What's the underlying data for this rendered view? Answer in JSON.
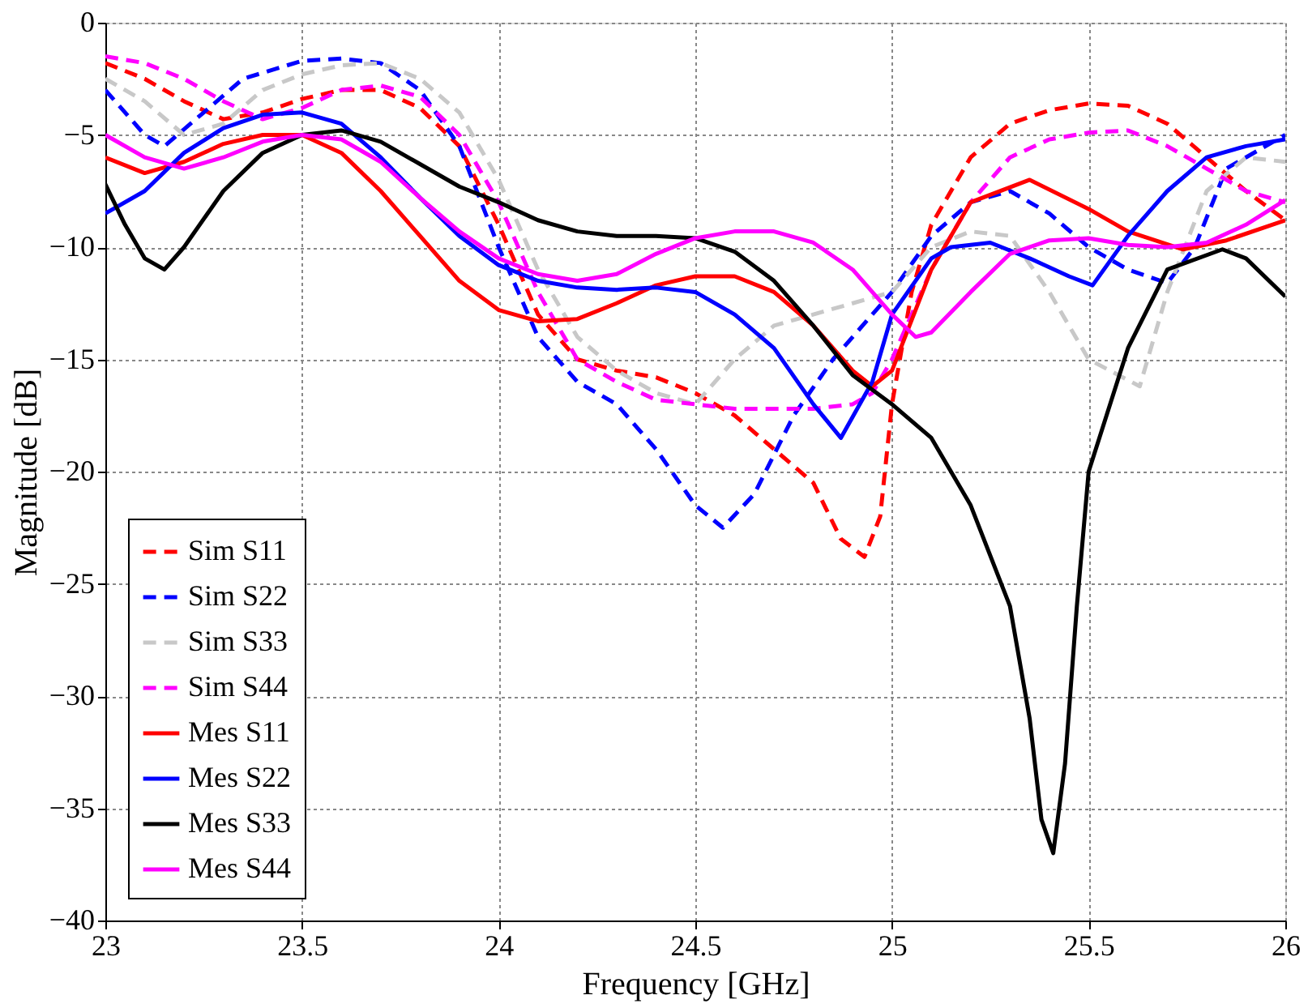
{
  "chart_data": {
    "type": "line",
    "xlabel": "Frequency [GHz]",
    "ylabel": "Magnitude [dB]",
    "xlim": [
      23,
      26
    ],
    "ylim": [
      -40,
      0
    ],
    "xticks": [
      23,
      23.5,
      24,
      24.5,
      25,
      25.5,
      26
    ],
    "yticks": [
      -40,
      -35,
      -30,
      -25,
      -20,
      -15,
      -10,
      -5,
      0
    ],
    "grid": true,
    "legend": "bottom left",
    "marker": "none",
    "series": [
      {
        "name": "Sim S11",
        "color": "#ff0000",
        "line_style": "dashed",
        "x": [
          23.0,
          23.1,
          23.2,
          23.3,
          23.4,
          23.5,
          23.6,
          23.7,
          23.8,
          23.9,
          24.0,
          24.1,
          24.2,
          24.3,
          24.4,
          24.5,
          24.6,
          24.7,
          24.8,
          24.87,
          24.93,
          24.97,
          25.0,
          25.05,
          25.1,
          25.2,
          25.3,
          25.4,
          25.5,
          25.6,
          25.7,
          25.8,
          25.9,
          26.0
        ],
        "values": [
          -1.8,
          -2.5,
          -3.5,
          -4.3,
          -4.0,
          -3.4,
          -3.0,
          -3.0,
          -3.8,
          -5.5,
          -9,
          -13,
          -15,
          -15.5,
          -15.8,
          -16.5,
          -17.5,
          -19,
          -20.5,
          -23,
          -23.8,
          -22,
          -17,
          -12,
          -9,
          -6,
          -4.5,
          -3.9,
          -3.6,
          -3.7,
          -4.5,
          -6,
          -7.5,
          -8.8
        ]
      },
      {
        "name": "Sim S22",
        "color": "#0000ff",
        "line_style": "dashed",
        "x": [
          23.0,
          23.1,
          23.15,
          23.25,
          23.35,
          23.5,
          23.6,
          23.7,
          23.8,
          23.9,
          24.0,
          24.1,
          24.2,
          24.3,
          24.4,
          24.5,
          24.57,
          24.65,
          24.75,
          24.85,
          25.0,
          25.1,
          25.2,
          25.3,
          25.4,
          25.5,
          25.6,
          25.7,
          25.77,
          25.85,
          26.0
        ],
        "values": [
          -3,
          -5,
          -5.5,
          -4,
          -2.5,
          -1.7,
          -1.6,
          -1.8,
          -3,
          -5.5,
          -10,
          -14,
          -16,
          -17,
          -19,
          -21.5,
          -22.5,
          -21,
          -17.5,
          -15,
          -12,
          -9.5,
          -8,
          -7.5,
          -8.5,
          -10,
          -11,
          -11.6,
          -10,
          -6.5,
          -5
        ]
      },
      {
        "name": "Sim S33",
        "color": "#c8c8c8",
        "line_style": "dashed",
        "x": [
          23.0,
          23.1,
          23.2,
          23.3,
          23.4,
          23.5,
          23.6,
          23.7,
          23.8,
          23.9,
          24.0,
          24.1,
          24.2,
          24.3,
          24.4,
          24.5,
          24.6,
          24.7,
          24.8,
          24.9,
          25.0,
          25.1,
          25.2,
          25.3,
          25.4,
          25.5,
          25.63,
          25.7,
          25.8,
          25.9,
          26.0
        ],
        "values": [
          -2.5,
          -3.5,
          -5,
          -4.5,
          -3,
          -2.3,
          -1.9,
          -1.8,
          -2.5,
          -4,
          -7,
          -11,
          -14,
          -15.5,
          -16.5,
          -17,
          -15,
          -13.5,
          -13,
          -12.5,
          -12,
          -10,
          -9.3,
          -9.5,
          -12,
          -15,
          -16.2,
          -12,
          -7.5,
          -6,
          -6.2
        ]
      },
      {
        "name": "Sim S44",
        "color": "#ff00ff",
        "line_style": "dashed",
        "x": [
          23.0,
          23.1,
          23.2,
          23.3,
          23.4,
          23.5,
          23.6,
          23.7,
          23.8,
          23.9,
          24.0,
          24.1,
          24.2,
          24.3,
          24.4,
          24.5,
          24.6,
          24.7,
          24.8,
          24.9,
          24.95,
          25.0,
          25.1,
          25.2,
          25.3,
          25.4,
          25.5,
          25.6,
          25.7,
          25.8,
          25.9,
          26.0
        ],
        "values": [
          -1.5,
          -1.8,
          -2.5,
          -3.5,
          -4.3,
          -3.8,
          -3,
          -2.8,
          -3.3,
          -5,
          -8,
          -12,
          -15,
          -16,
          -16.8,
          -17,
          -17.2,
          -17.2,
          -17.2,
          -17,
          -16.5,
          -15,
          -11,
          -8,
          -6,
          -5.2,
          -4.9,
          -4.8,
          -5.5,
          -6.5,
          -7.5,
          -8
        ]
      },
      {
        "name": "Mes S11",
        "color": "#ff0000",
        "line_style": "solid",
        "x": [
          23.0,
          23.1,
          23.2,
          23.3,
          23.4,
          23.5,
          23.6,
          23.7,
          23.8,
          23.9,
          24.0,
          24.1,
          24.2,
          24.3,
          24.4,
          24.5,
          24.6,
          24.7,
          24.8,
          24.9,
          24.95,
          25.0,
          25.1,
          25.2,
          25.35,
          25.5,
          25.6,
          25.74,
          25.85,
          26.0
        ],
        "values": [
          -6,
          -6.7,
          -6.2,
          -5.4,
          -5,
          -5,
          -5.8,
          -7.5,
          -9.5,
          -11.5,
          -12.8,
          -13.3,
          -13.2,
          -12.5,
          -11.7,
          -11.3,
          -11.3,
          -12,
          -13.5,
          -15.5,
          -16.2,
          -15.5,
          -11,
          -8,
          -7,
          -8.3,
          -9.3,
          -10.1,
          -9.7,
          -8.8
        ]
      },
      {
        "name": "Mes S22",
        "color": "#0000ff",
        "line_style": "solid",
        "x": [
          23.0,
          23.1,
          23.2,
          23.3,
          23.4,
          23.5,
          23.6,
          23.7,
          23.8,
          23.9,
          24.0,
          24.1,
          24.2,
          24.3,
          24.4,
          24.5,
          24.6,
          24.7,
          24.8,
          24.87,
          24.95,
          25.0,
          25.1,
          25.15,
          25.25,
          25.35,
          25.45,
          25.51,
          25.6,
          25.7,
          25.8,
          25.9,
          26.0
        ],
        "values": [
          -8.5,
          -7.5,
          -5.8,
          -4.7,
          -4.1,
          -4,
          -4.5,
          -6,
          -7.8,
          -9.5,
          -10.8,
          -11.5,
          -11.8,
          -11.9,
          -11.8,
          -12,
          -13,
          -14.5,
          -17,
          -18.5,
          -16,
          -13,
          -10.5,
          -10,
          -9.8,
          -10.5,
          -11.3,
          -11.7,
          -9.5,
          -7.5,
          -6,
          -5.5,
          -5.2
        ]
      },
      {
        "name": "Mes S33",
        "color": "#000000",
        "line_style": "solid",
        "x": [
          23.0,
          23.05,
          23.1,
          23.15,
          23.2,
          23.3,
          23.4,
          23.5,
          23.6,
          23.7,
          23.8,
          23.9,
          24.0,
          24.1,
          24.2,
          24.3,
          24.4,
          24.5,
          24.6,
          24.7,
          24.8,
          24.9,
          25.0,
          25.1,
          25.2,
          25.3,
          25.35,
          25.38,
          25.41,
          25.44,
          25.47,
          25.5,
          25.6,
          25.7,
          25.84,
          25.9,
          26.0
        ],
        "values": [
          -7.2,
          -9,
          -10.5,
          -11,
          -10,
          -7.5,
          -5.8,
          -5,
          -4.8,
          -5.3,
          -6.3,
          -7.3,
          -8,
          -8.8,
          -9.3,
          -9.5,
          -9.5,
          -9.6,
          -10.2,
          -11.5,
          -13.5,
          -15.7,
          -17,
          -18.5,
          -21.5,
          -26,
          -31,
          -35.5,
          -37,
          -33,
          -26,
          -20,
          -14.5,
          -11,
          -10.1,
          -10.5,
          -12.2
        ]
      },
      {
        "name": "Mes S44",
        "color": "#ff00ff",
        "line_style": "solid",
        "x": [
          23.0,
          23.1,
          23.2,
          23.3,
          23.4,
          23.5,
          23.6,
          23.7,
          23.8,
          23.9,
          24.0,
          24.1,
          24.2,
          24.3,
          24.4,
          24.5,
          24.6,
          24.7,
          24.8,
          24.9,
          25.0,
          25.06,
          25.1,
          25.2,
          25.3,
          25.4,
          25.5,
          25.6,
          25.7,
          25.8,
          25.9,
          26.0
        ],
        "values": [
          -5,
          -6,
          -6.5,
          -6,
          -5.3,
          -5,
          -5.2,
          -6.2,
          -7.8,
          -9.3,
          -10.5,
          -11.2,
          -11.5,
          -11.2,
          -10.3,
          -9.6,
          -9.3,
          -9.3,
          -9.8,
          -11,
          -13,
          -14,
          -13.8,
          -12,
          -10.3,
          -9.7,
          -9.6,
          -9.9,
          -10,
          -9.8,
          -9,
          -7.9
        ]
      }
    ]
  }
}
